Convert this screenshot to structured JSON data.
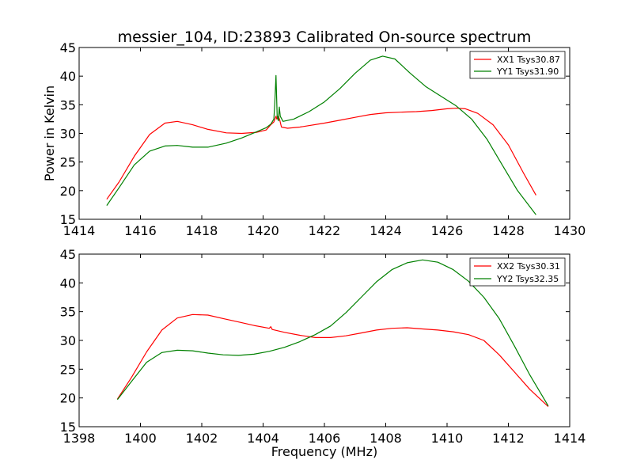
{
  "chart_data": [
    {
      "type": "line",
      "title": "messier_104, ID:23893 Calibrated On-source spectrum",
      "xlabel": "",
      "ylabel": "Power in Kelvin",
      "xlim": [
        1414,
        1430
      ],
      "ylim": [
        15,
        45
      ],
      "xticks": [
        1414,
        1416,
        1418,
        1420,
        1422,
        1424,
        1426,
        1428,
        1430
      ],
      "yticks": [
        15,
        20,
        25,
        30,
        35,
        40,
        45
      ],
      "legend_position": "upper right",
      "series": [
        {
          "name": "XX1 Tsys30.87",
          "color": "#ff0000",
          "x": [
            1414.9,
            1415.3,
            1415.8,
            1416.3,
            1416.8,
            1417.2,
            1417.7,
            1418.2,
            1418.8,
            1419.3,
            1419.8,
            1420.1,
            1420.25,
            1420.35,
            1420.42,
            1420.45,
            1420.5,
            1420.55,
            1420.6,
            1420.8,
            1421.2,
            1422.0,
            1422.5,
            1423.0,
            1423.5,
            1424.0,
            1424.5,
            1425.0,
            1425.5,
            1426.0,
            1426.3,
            1426.6,
            1427.0,
            1427.5,
            1428.0,
            1428.5,
            1428.9
          ],
          "values": [
            18.5,
            21.5,
            26.0,
            29.8,
            31.8,
            32.1,
            31.5,
            30.7,
            30.1,
            30.0,
            30.2,
            30.6,
            31.5,
            32.0,
            33.0,
            32.5,
            33.0,
            32.2,
            31.1,
            30.9,
            31.1,
            31.8,
            32.3,
            32.8,
            33.3,
            33.6,
            33.7,
            33.8,
            34.0,
            34.3,
            34.4,
            34.3,
            33.5,
            31.5,
            28.0,
            23.0,
            19.2
          ]
        },
        {
          "name": "YY1 Tsys31.90",
          "color": "#008000",
          "x": [
            1414.9,
            1415.3,
            1415.8,
            1416.3,
            1416.8,
            1417.2,
            1417.7,
            1418.2,
            1418.8,
            1419.3,
            1419.8,
            1420.1,
            1420.25,
            1420.35,
            1420.38,
            1420.42,
            1420.46,
            1420.5,
            1420.53,
            1420.56,
            1420.65,
            1421.0,
            1421.5,
            1422.0,
            1422.5,
            1423.0,
            1423.5,
            1423.9,
            1424.3,
            1424.8,
            1425.3,
            1425.8,
            1426.3,
            1426.8,
            1427.3,
            1427.8,
            1428.3,
            1428.9
          ],
          "values": [
            17.4,
            20.5,
            24.5,
            26.9,
            27.8,
            27.9,
            27.6,
            27.6,
            28.3,
            29.2,
            30.3,
            31.0,
            31.6,
            32.5,
            35.0,
            40.1,
            33.0,
            32.2,
            34.6,
            33.0,
            32.1,
            32.5,
            33.8,
            35.5,
            37.8,
            40.5,
            42.8,
            43.5,
            43.0,
            40.5,
            38.2,
            36.5,
            34.8,
            32.5,
            29.0,
            24.5,
            20.0,
            15.8
          ]
        }
      ]
    },
    {
      "type": "line",
      "title": "",
      "xlabel": "Frequency (MHz)",
      "ylabel": "",
      "xlim": [
        1398,
        1414
      ],
      "ylim": [
        15,
        45
      ],
      "xticks": [
        1398,
        1400,
        1402,
        1404,
        1406,
        1408,
        1410,
        1412,
        1414
      ],
      "yticks": [
        15,
        20,
        25,
        30,
        35,
        40,
        45
      ],
      "legend_position": "upper right",
      "series": [
        {
          "name": "XX2 Tsys30.31",
          "color": "#ff0000",
          "x": [
            1399.25,
            1399.7,
            1400.2,
            1400.7,
            1401.2,
            1401.7,
            1402.2,
            1402.7,
            1403.2,
            1403.7,
            1404.2,
            1404.25,
            1404.3,
            1404.7,
            1405.2,
            1405.7,
            1406.2,
            1406.7,
            1407.2,
            1407.7,
            1408.2,
            1408.7,
            1409.2,
            1409.7,
            1410.2,
            1410.7,
            1411.2,
            1411.7,
            1412.2,
            1412.7,
            1413.3
          ],
          "values": [
            19.8,
            23.5,
            28.0,
            31.8,
            33.9,
            34.5,
            34.4,
            33.8,
            33.2,
            32.6,
            32.1,
            32.4,
            31.9,
            31.4,
            30.9,
            30.5,
            30.5,
            30.8,
            31.3,
            31.8,
            32.1,
            32.2,
            32.0,
            31.8,
            31.5,
            31.0,
            30.0,
            27.5,
            24.5,
            21.5,
            18.5
          ]
        },
        {
          "name": "YY2 Tsys32.35",
          "color": "#008000",
          "x": [
            1399.25,
            1399.7,
            1400.2,
            1400.7,
            1401.2,
            1401.7,
            1402.2,
            1402.7,
            1403.2,
            1403.7,
            1404.2,
            1404.7,
            1405.2,
            1405.7,
            1406.2,
            1406.7,
            1407.2,
            1407.7,
            1408.2,
            1408.7,
            1409.2,
            1409.7,
            1410.2,
            1410.7,
            1411.2,
            1411.7,
            1412.2,
            1412.7,
            1413.3
          ],
          "values": [
            19.7,
            22.8,
            26.2,
            27.9,
            28.3,
            28.2,
            27.8,
            27.5,
            27.4,
            27.6,
            28.1,
            28.8,
            29.8,
            31.0,
            32.5,
            34.8,
            37.5,
            40.2,
            42.3,
            43.5,
            44.0,
            43.6,
            42.3,
            40.3,
            37.5,
            33.8,
            29.0,
            24.0,
            18.6
          ]
        }
      ]
    }
  ]
}
